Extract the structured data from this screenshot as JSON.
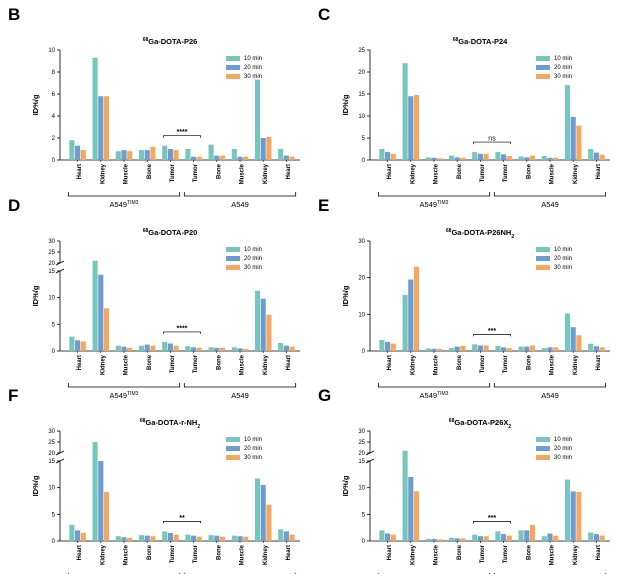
{
  "colors": {
    "s10": "#77c6bd",
    "s20": "#6f9ccf",
    "s30": "#f3a75f"
  },
  "chart_data": [
    {
      "id": "B",
      "letter": "B",
      "type": "bar",
      "title": {
        "pre": "",
        "iso": "68",
        "main": "Ga-DOTA-P26",
        "sub": "",
        "post": ""
      },
      "ylabel": "ID%/g",
      "categories": [
        "Heart",
        "Kidney",
        "Muscle",
        "Bone",
        "Tumor",
        "Tumor",
        "Bone",
        "Muscle",
        "Kidney",
        "Heart"
      ],
      "axis": {
        "type": "linear",
        "ylim": [
          0,
          10
        ],
        "ticks": [
          "0",
          "2",
          "4",
          "6",
          "8",
          "10"
        ],
        "tick_values": [
          0,
          2,
          4,
          6,
          8,
          10
        ]
      },
      "series": [
        {
          "name": "10 min",
          "values": [
            1.8,
            9.3,
            0.8,
            0.9,
            1.3,
            1.0,
            1.4,
            1.0,
            7.3,
            1.0
          ]
        },
        {
          "name": "20 min",
          "values": [
            1.3,
            5.8,
            0.9,
            0.9,
            1.0,
            0.3,
            0.4,
            0.3,
            2.0,
            0.4
          ]
        },
        {
          "name": "30 min",
          "values": [
            0.9,
            5.8,
            0.8,
            1.2,
            0.9,
            0.3,
            0.4,
            0.3,
            2.1,
            0.3
          ]
        }
      ],
      "significance": {
        "label": "****",
        "from": 4,
        "to": 5
      },
      "groups": [
        {
          "prefix": "A549",
          "sup": "TIM3",
          "from": 0,
          "to": 4
        },
        {
          "prefix": "A549",
          "sup": "",
          "from": 5,
          "to": 9
        }
      ]
    },
    {
      "id": "C",
      "letter": "C",
      "type": "bar",
      "title": {
        "pre": "",
        "iso": "68",
        "main": "Ga-DOTA-P24",
        "sub": "",
        "post": ""
      },
      "ylabel": "ID%/g",
      "categories": [
        "Heart",
        "Kidney",
        "Muscle",
        "Bone",
        "Tumor",
        "Tumor",
        "Bone",
        "Muscle",
        "Kidney",
        "Heart"
      ],
      "axis": {
        "type": "linear",
        "ylim": [
          0,
          25
        ],
        "ticks": [
          "0",
          "5",
          "10",
          "15",
          "20",
          "25"
        ],
        "tick_values": [
          0,
          5,
          10,
          15,
          20,
          25
        ]
      },
      "series": [
        {
          "name": "10 min",
          "values": [
            2.5,
            22.0,
            0.6,
            1.0,
            1.8,
            1.8,
            0.8,
            0.9,
            17.0,
            2.5
          ]
        },
        {
          "name": "20 min",
          "values": [
            1.8,
            14.5,
            0.5,
            0.6,
            1.4,
            1.3,
            0.6,
            0.5,
            9.8,
            1.7
          ]
        },
        {
          "name": "30 min",
          "values": [
            1.4,
            14.8,
            0.4,
            0.5,
            1.4,
            0.9,
            1.0,
            0.5,
            7.8,
            1.2
          ]
        }
      ],
      "significance": {
        "label": "ns",
        "from": 4,
        "to": 5
      },
      "groups": [
        {
          "prefix": "A549",
          "sup": "TIM3",
          "from": 0,
          "to": 4
        },
        {
          "prefix": "A549",
          "sup": "",
          "from": 5,
          "to": 9
        }
      ]
    },
    {
      "id": "D",
      "letter": "D",
      "type": "bar",
      "title": {
        "pre": "",
        "iso": "68",
        "main": "Ga-DOTA-P20",
        "sub": "",
        "post": ""
      },
      "ylabel": "ID%/g",
      "categories": [
        "Heart",
        "Kidney",
        "Muscle",
        "Bone",
        "Tumor",
        "Tumor",
        "Bone",
        "Muscle",
        "Kidney",
        "Heart"
      ],
      "axis": {
        "type": "broken",
        "lower": [
          0,
          15
        ],
        "upper": [
          20,
          30
        ],
        "ticks": [
          "0",
          "5",
          "10",
          "15",
          "20",
          "25",
          "30"
        ],
        "tick_values": [
          0,
          5,
          10,
          15,
          20,
          25,
          30
        ]
      },
      "series": [
        {
          "name": "10 min",
          "values": [
            2.7,
            21.0,
            1.0,
            1.0,
            1.7,
            0.9,
            0.7,
            0.7,
            11.3,
            1.5
          ]
        },
        {
          "name": "20 min",
          "values": [
            2.0,
            14.3,
            0.8,
            1.2,
            1.4,
            0.7,
            0.6,
            0.5,
            9.8,
            1.0
          ]
        },
        {
          "name": "30 min",
          "values": [
            1.8,
            8.0,
            0.6,
            1.0,
            1.0,
            0.6,
            0.6,
            0.4,
            6.8,
            0.8
          ]
        }
      ],
      "significance": {
        "label": "****",
        "from": 4,
        "to": 5
      },
      "groups": [
        {
          "prefix": "A549",
          "sup": "TIM3",
          "from": 0,
          "to": 4
        },
        {
          "prefix": "A549",
          "sup": "",
          "from": 5,
          "to": 9
        }
      ]
    },
    {
      "id": "E",
      "letter": "E",
      "type": "bar",
      "title": {
        "pre": "",
        "iso": "68",
        "main": "Ga-DOTA-P26NH",
        "sub": "2",
        "post": ""
      },
      "ylabel": "ID%/g",
      "categories": [
        "Heart",
        "Kidney",
        "Muscle",
        "Bone",
        "Tumor",
        "Tumor",
        "Bone",
        "Muscle",
        "Kidney",
        "Heart"
      ],
      "axis": {
        "type": "linear",
        "ylim": [
          0,
          30
        ],
        "ticks": [
          "0",
          "10",
          "20",
          "30"
        ],
        "tick_values": [
          0,
          10,
          20,
          30
        ]
      },
      "series": [
        {
          "name": "10 min",
          "values": [
            3.0,
            15.3,
            0.7,
            0.8,
            1.8,
            1.4,
            1.2,
            0.8,
            10.2,
            2.0
          ]
        },
        {
          "name": "20 min",
          "values": [
            2.5,
            19.5,
            0.6,
            1.2,
            1.5,
            1.0,
            1.2,
            1.0,
            6.5,
            1.3
          ]
        },
        {
          "name": "30 min",
          "values": [
            2.0,
            23.0,
            0.6,
            1.4,
            1.5,
            0.8,
            1.5,
            1.0,
            4.3,
            1.0
          ]
        }
      ],
      "significance": {
        "label": "***",
        "from": 4,
        "to": 5
      },
      "groups": [
        {
          "prefix": "A549",
          "sup": "TIM3",
          "from": 0,
          "to": 4
        },
        {
          "prefix": "A549",
          "sup": "",
          "from": 5,
          "to": 9
        }
      ]
    },
    {
      "id": "F",
      "letter": "F",
      "type": "bar",
      "title": {
        "pre": "",
        "iso": "68",
        "main": "Ga-DOTA-r-NH",
        "sub": "2",
        "post": ""
      },
      "ylabel": "ID%/g",
      "categories": [
        "Heart",
        "Kidney",
        "Muscle",
        "Bone",
        "Tumor",
        "Tumor",
        "Bone",
        "Muscle",
        "Kidney",
        "Heart"
      ],
      "axis": {
        "type": "broken",
        "lower": [
          0,
          15
        ],
        "upper": [
          20,
          30
        ],
        "ticks": [
          "0",
          "5",
          "10",
          "15",
          "20",
          "25",
          "30"
        ],
        "tick_values": [
          0,
          5,
          10,
          15,
          20,
          25,
          30
        ]
      },
      "series": [
        {
          "name": "10 min",
          "values": [
            3.0,
            25.0,
            0.9,
            1.1,
            1.8,
            1.2,
            1.1,
            1.0,
            11.7,
            2.2
          ]
        },
        {
          "name": "20 min",
          "values": [
            2.0,
            15.0,
            0.7,
            1.0,
            1.5,
            1.0,
            1.0,
            0.9,
            10.5,
            1.8
          ]
        },
        {
          "name": "30 min",
          "values": [
            1.5,
            9.2,
            0.6,
            0.9,
            1.2,
            0.8,
            0.8,
            0.8,
            6.8,
            1.2
          ]
        }
      ],
      "significance": {
        "label": "**",
        "from": 4,
        "to": 5
      },
      "groups": [
        {
          "prefix": "A549",
          "sup": "TIM3",
          "from": 0,
          "to": 4
        },
        {
          "prefix": "A549",
          "sup": "",
          "from": 5,
          "to": 9
        }
      ]
    },
    {
      "id": "G",
      "letter": "G",
      "type": "bar",
      "title": {
        "pre": "",
        "iso": "68",
        "main": "Ga-DOTA-P26X",
        "sub": "2",
        "post": ""
      },
      "ylabel": "ID%/g",
      "categories": [
        "Heart",
        "Kidney",
        "Muscle",
        "Bone",
        "Tumor",
        "Tumor",
        "Bone",
        "Muscle",
        "Kidney",
        "Heart"
      ],
      "axis": {
        "type": "broken",
        "lower": [
          0,
          15
        ],
        "upper": [
          20,
          30
        ],
        "ticks": [
          "0",
          "5",
          "10",
          "15",
          "20",
          "25",
          "30"
        ],
        "tick_values": [
          0,
          5,
          10,
          15,
          20,
          25,
          30
        ]
      },
      "series": [
        {
          "name": "10 min",
          "values": [
            2.0,
            21.0,
            0.4,
            0.6,
            1.2,
            1.8,
            2.0,
            0.9,
            11.5,
            1.6
          ]
        },
        {
          "name": "20 min",
          "values": [
            1.4,
            12.0,
            0.4,
            0.5,
            0.9,
            1.3,
            2.0,
            1.4,
            9.3,
            1.3
          ]
        },
        {
          "name": "30 min",
          "values": [
            1.2,
            9.3,
            0.3,
            0.5,
            0.9,
            1.0,
            3.0,
            1.0,
            9.2,
            1.0
          ]
        }
      ],
      "significance": {
        "label": "***",
        "from": 4,
        "to": 5
      },
      "groups": [
        {
          "prefix": "A549",
          "sup": "TIM3",
          "from": 0,
          "to": 4
        },
        {
          "prefix": "A549",
          "sup": "",
          "from": 5,
          "to": 9
        }
      ]
    }
  ]
}
